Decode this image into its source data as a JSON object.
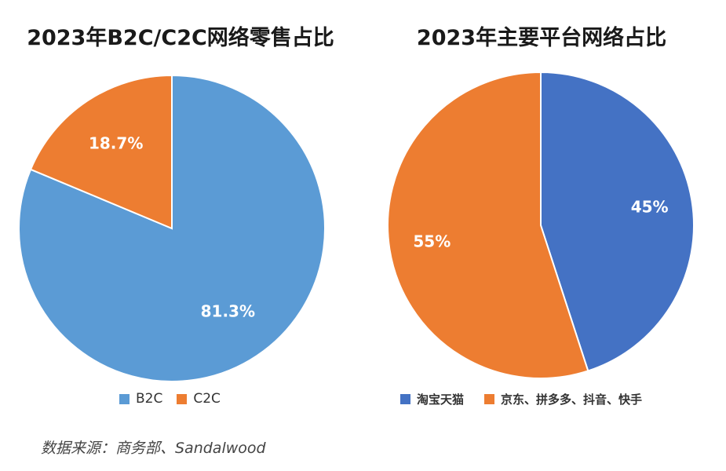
{
  "chart_data": [
    {
      "type": "pie",
      "title": "2023年B2C/C2C网络零售占比",
      "categories": [
        "B2C",
        "C2C"
      ],
      "values": [
        81.3,
        18.7
      ],
      "labels": [
        "81.3%",
        "18.7%"
      ],
      "colors": [
        "#5B9BD5",
        "#ED7D31"
      ],
      "legend": "bottom"
    },
    {
      "type": "pie",
      "title": "2023年主要平台网络占比",
      "categories": [
        "淘宝天猫",
        "京东、拼多多、抖音、快手"
      ],
      "values": [
        45,
        55
      ],
      "labels": [
        "45%",
        "55%"
      ],
      "colors": [
        "#4472C4",
        "#ED7D31"
      ],
      "legend": "bottom"
    }
  ],
  "source": "数据来源：商务部、Sandalwood"
}
